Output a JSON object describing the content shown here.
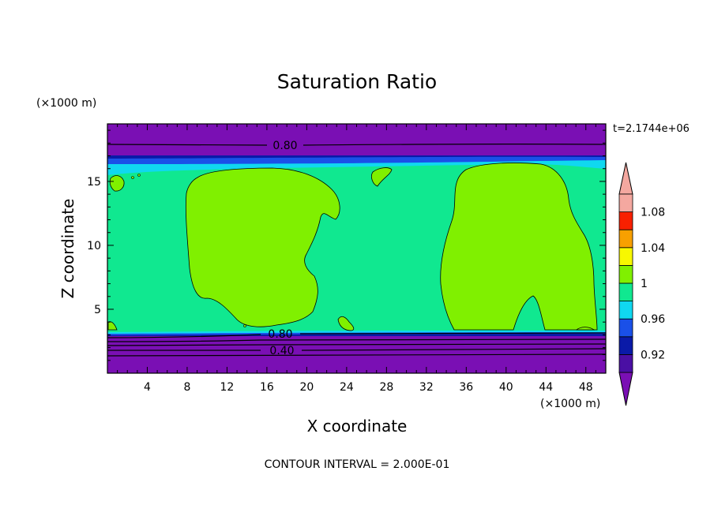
{
  "chart_data": {
    "type": "heatmap",
    "title": "Saturation Ratio",
    "xlabel": "X coordinate",
    "ylabel": "Z coordinate",
    "x_unit": "(×1000 m)",
    "y_unit": "(×1000 m)",
    "time_label": "t=2.1744e+06",
    "footer": "CONTOUR INTERVAL = 2.000E-01",
    "xlim": [
      0,
      50
    ],
    "ylim": [
      0,
      19.5
    ],
    "x_ticks": [
      4,
      8,
      12,
      16,
      20,
      24,
      28,
      32,
      36,
      40,
      44,
      48
    ],
    "y_ticks": [
      5,
      10,
      15
    ],
    "contour_line_labels": [
      {
        "text": "0.80",
        "x": 17.5,
        "z": 18.0
      },
      {
        "text": "0.80",
        "x": 17.0,
        "z": 3.0
      },
      {
        "text": "0.40",
        "x": 17.0,
        "z": 1.75
      }
    ],
    "colorbar": {
      "levels": [
        "0.92",
        "",
        "0.96",
        "",
        "1",
        "",
        "1.04",
        "",
        "1.08",
        ""
      ],
      "colors": [
        "#4a0fa4",
        "#0a1aa8",
        "#1a50e8",
        "#10d8f0",
        "#10e890",
        "#80f000",
        "#f8f800",
        "#f8a000",
        "#f82000",
        "#f4a8a0"
      ],
      "under_color": "#7a0fb4",
      "over_color": "#f4a8a0"
    },
    "regions": [
      {
        "name": "upper-dry-layer",
        "z_range": [
          17.2,
          19.5
        ],
        "value": "< 0.92"
      },
      {
        "name": "lower-dry-layer",
        "z_range": [
          0,
          3.2
        ],
        "value": "< 0.92"
      },
      {
        "name": "mid-layer",
        "z_range": [
          3.2,
          17.2
        ],
        "value": "0.98 - 1"
      },
      {
        "name": "saturated-cell-west",
        "x_range": [
          8,
          23
        ],
        "z_range": [
          3.5,
          16.0
        ],
        "value": "1 - 1.02"
      },
      {
        "name": "saturated-cell-east",
        "x_range": [
          33,
          49
        ],
        "z_range": [
          3.5,
          16.5
        ],
        "value": "1 - 1.02"
      }
    ]
  }
}
